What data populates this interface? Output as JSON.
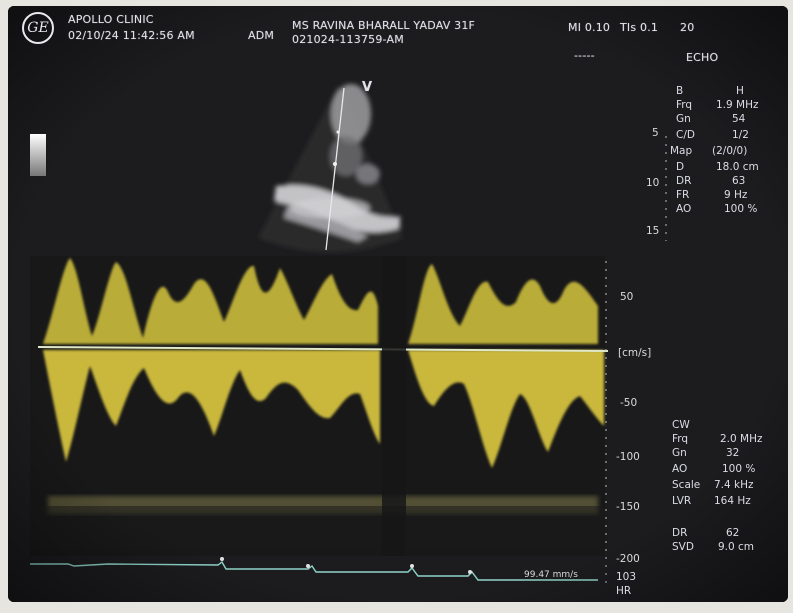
{
  "header": {
    "logo_text": "GE",
    "clinic": "APOLLO CLINIC",
    "datetime": "02/10/24 11:42:56 AM",
    "operator": "ADM",
    "patient": "MS RAVINA BHARALL YADAV 31F",
    "exam_id": "021024-113759-AM",
    "mi": "MI 0.10",
    "tis": "TIs 0.1",
    "frame": "20",
    "dashes": "-----",
    "mode": "ECHO"
  },
  "b_mode": {
    "marker": "V",
    "depth_ticks": [
      "5",
      "10",
      "15"
    ],
    "params": [
      {
        "label": "B",
        "value": "H"
      },
      {
        "label": "Frq",
        "value": "1.9 MHz"
      },
      {
        "label": "Gn",
        "value": "54"
      },
      {
        "label": "C/D",
        "value": "1/2"
      },
      {
        "label": "Map",
        "value": "(2/0/0)"
      },
      {
        "label": "D",
        "value": "18.0 cm"
      },
      {
        "label": "DR",
        "value": "63"
      },
      {
        "label": "FR",
        "value": "9 Hz"
      },
      {
        "label": "AO",
        "value": "100 %"
      }
    ]
  },
  "doppler": {
    "velocity_ticks": [
      "50",
      "[cm/s]",
      "-50",
      "-100",
      "-150",
      "-200"
    ],
    "bottom_readout": "99.47 mm/s",
    "params": [
      {
        "label": "CW",
        "value": ""
      },
      {
        "label": "Frq",
        "value": "2.0 MHz"
      },
      {
        "label": "Gn",
        "value": "32"
      },
      {
        "label": "AO",
        "value": "100 %"
      },
      {
        "label": "Scale",
        "value": "7.4 kHz"
      },
      {
        "label": "LVR",
        "value": "164 Hz"
      },
      {
        "label": "DR",
        "value": "62"
      },
      {
        "label": "SVD",
        "value": "9.0 cm"
      }
    ],
    "heart_rate": "103",
    "heart_rate_label": "HR"
  },
  "colors": {
    "background": "#1a1a1c",
    "doppler_signal": "#e6d654",
    "baseline": "#dfe8c8",
    "ecg": "#8fd3c8"
  }
}
